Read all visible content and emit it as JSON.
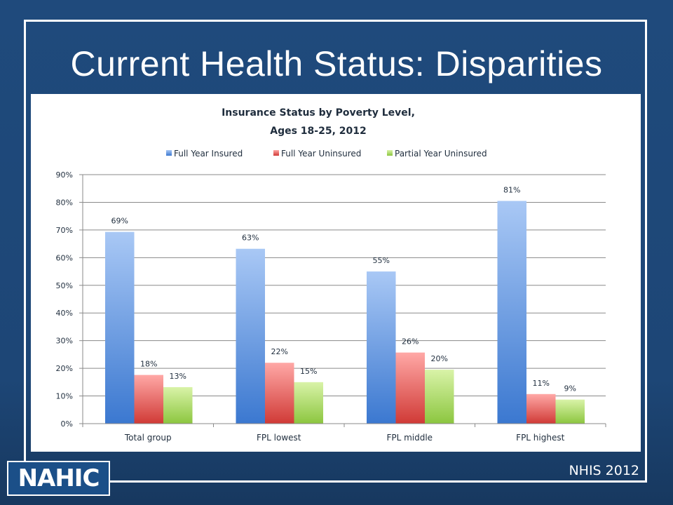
{
  "slide": {
    "title": "Current Health Status: Disparities",
    "logo_text": "NAHIC",
    "source": "NHIS 2012"
  },
  "chart_data": {
    "type": "bar",
    "title": "Insurance Status by Poverty Level,",
    "subtitle": "Ages 18-25, 2012",
    "categories": [
      "Total group",
      "FPL lowest",
      "FPL middle",
      "FPL highest"
    ],
    "series": [
      {
        "name": "Full Year Insured",
        "values": [
          69.3,
          63.2,
          55.0,
          80.5
        ],
        "labels": [
          "69%",
          "63%",
          "55%",
          "81%"
        ],
        "color_top": "#a9c8f5",
        "color_bottom": "#3b78d0"
      },
      {
        "name": "Full Year Uninsured",
        "values": [
          17.6,
          22.0,
          25.7,
          10.7
        ],
        "labels": [
          "18%",
          "22%",
          "26%",
          "11%"
        ],
        "color_top": "#ffa8a6",
        "color_bottom": "#d03a36"
      },
      {
        "name": "Partial Year Uninsured",
        "values": [
          13.2,
          15.0,
          19.5,
          8.7
        ],
        "labels": [
          "13%",
          "15%",
          "20%",
          "9%"
        ],
        "color_top": "#d9f3a8",
        "color_bottom": "#8cc63f"
      }
    ],
    "y_ticks": [
      "0%",
      "10%",
      "20%",
      "30%",
      "40%",
      "50%",
      "60%",
      "70%",
      "80%",
      "90%"
    ],
    "ylim": [
      0,
      90
    ],
    "grid": true,
    "legend_position": "top"
  }
}
